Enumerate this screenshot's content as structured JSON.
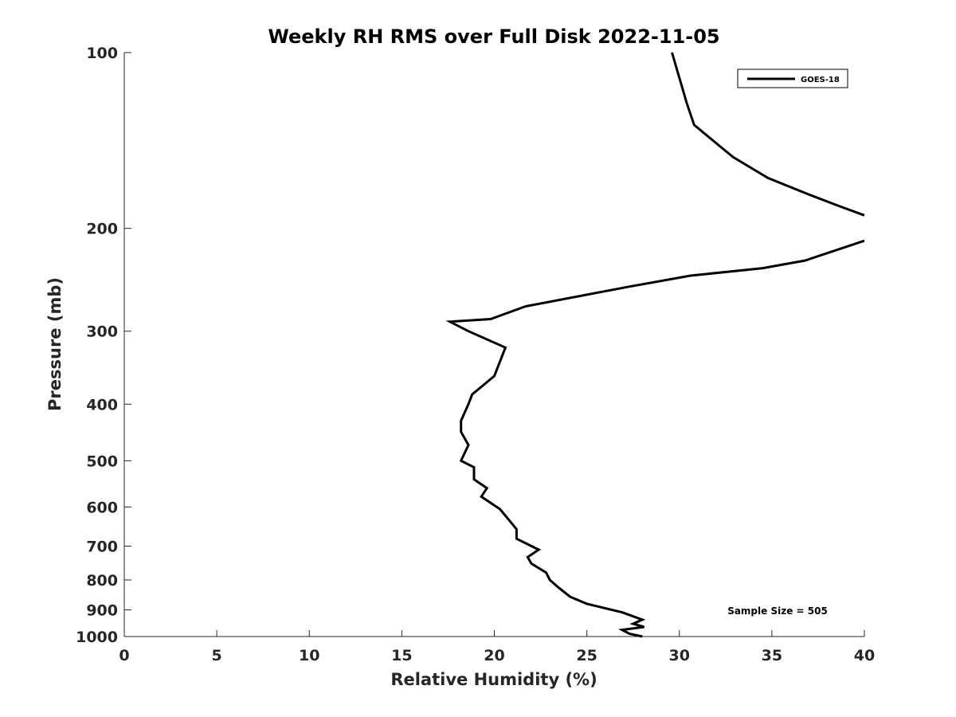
{
  "chart_data": {
    "type": "line",
    "title": "Weekly RH RMS over Full Disk 2022-11-05",
    "xlabel": "Relative Humidity (%)",
    "ylabel": "Pressure (mb)",
    "xlim": [
      0,
      40
    ],
    "ylim": [
      100,
      1000
    ],
    "yscale": "log",
    "yreversed": true,
    "xticks": [
      0,
      5,
      10,
      15,
      20,
      25,
      30,
      35,
      40
    ],
    "yticks": [
      100,
      200,
      300,
      400,
      500,
      600,
      700,
      800,
      900,
      1000
    ],
    "grid": false,
    "legend": {
      "position": "top-right",
      "entries": [
        "GOES-18"
      ]
    },
    "annotation": "Sample Size = 505",
    "series": [
      {
        "name": "GOES-18",
        "color": "#000000",
        "x": [
          29.6,
          30.4,
          30.8,
          32.9,
          34.8,
          37.0,
          38.6,
          40.0,
          null,
          40.0,
          36.8,
          34.5,
          30.6,
          27.2,
          21.7,
          19.8,
          17.6,
          18.6,
          20.6,
          20.0,
          18.8,
          18.6,
          18.2,
          18.2,
          18.6,
          18.2,
          18.9,
          18.9,
          19.6,
          19.3,
          20.3,
          20.8,
          21.2,
          21.2,
          22.4,
          21.8,
          22.0,
          22.8,
          23.0,
          23.5,
          24.1,
          25.0,
          26.9,
          28.0,
          27.5,
          28.1,
          26.9,
          27.3,
          28.0
        ],
        "y": [
          100,
          122,
          133,
          151,
          164,
          175,
          183,
          190,
          null,
          210,
          227,
          234,
          241,
          252,
          272,
          286,
          289,
          300,
          320,
          358,
          385,
          400,
          427,
          446,
          470,
          500,
          513,
          538,
          557,
          576,
          605,
          632,
          655,
          680,
          710,
          731,
          750,
          777,
          800,
          826,
          855,
          879,
          909,
          936,
          951,
          963,
          974,
          989,
          1000
        ]
      }
    ]
  }
}
